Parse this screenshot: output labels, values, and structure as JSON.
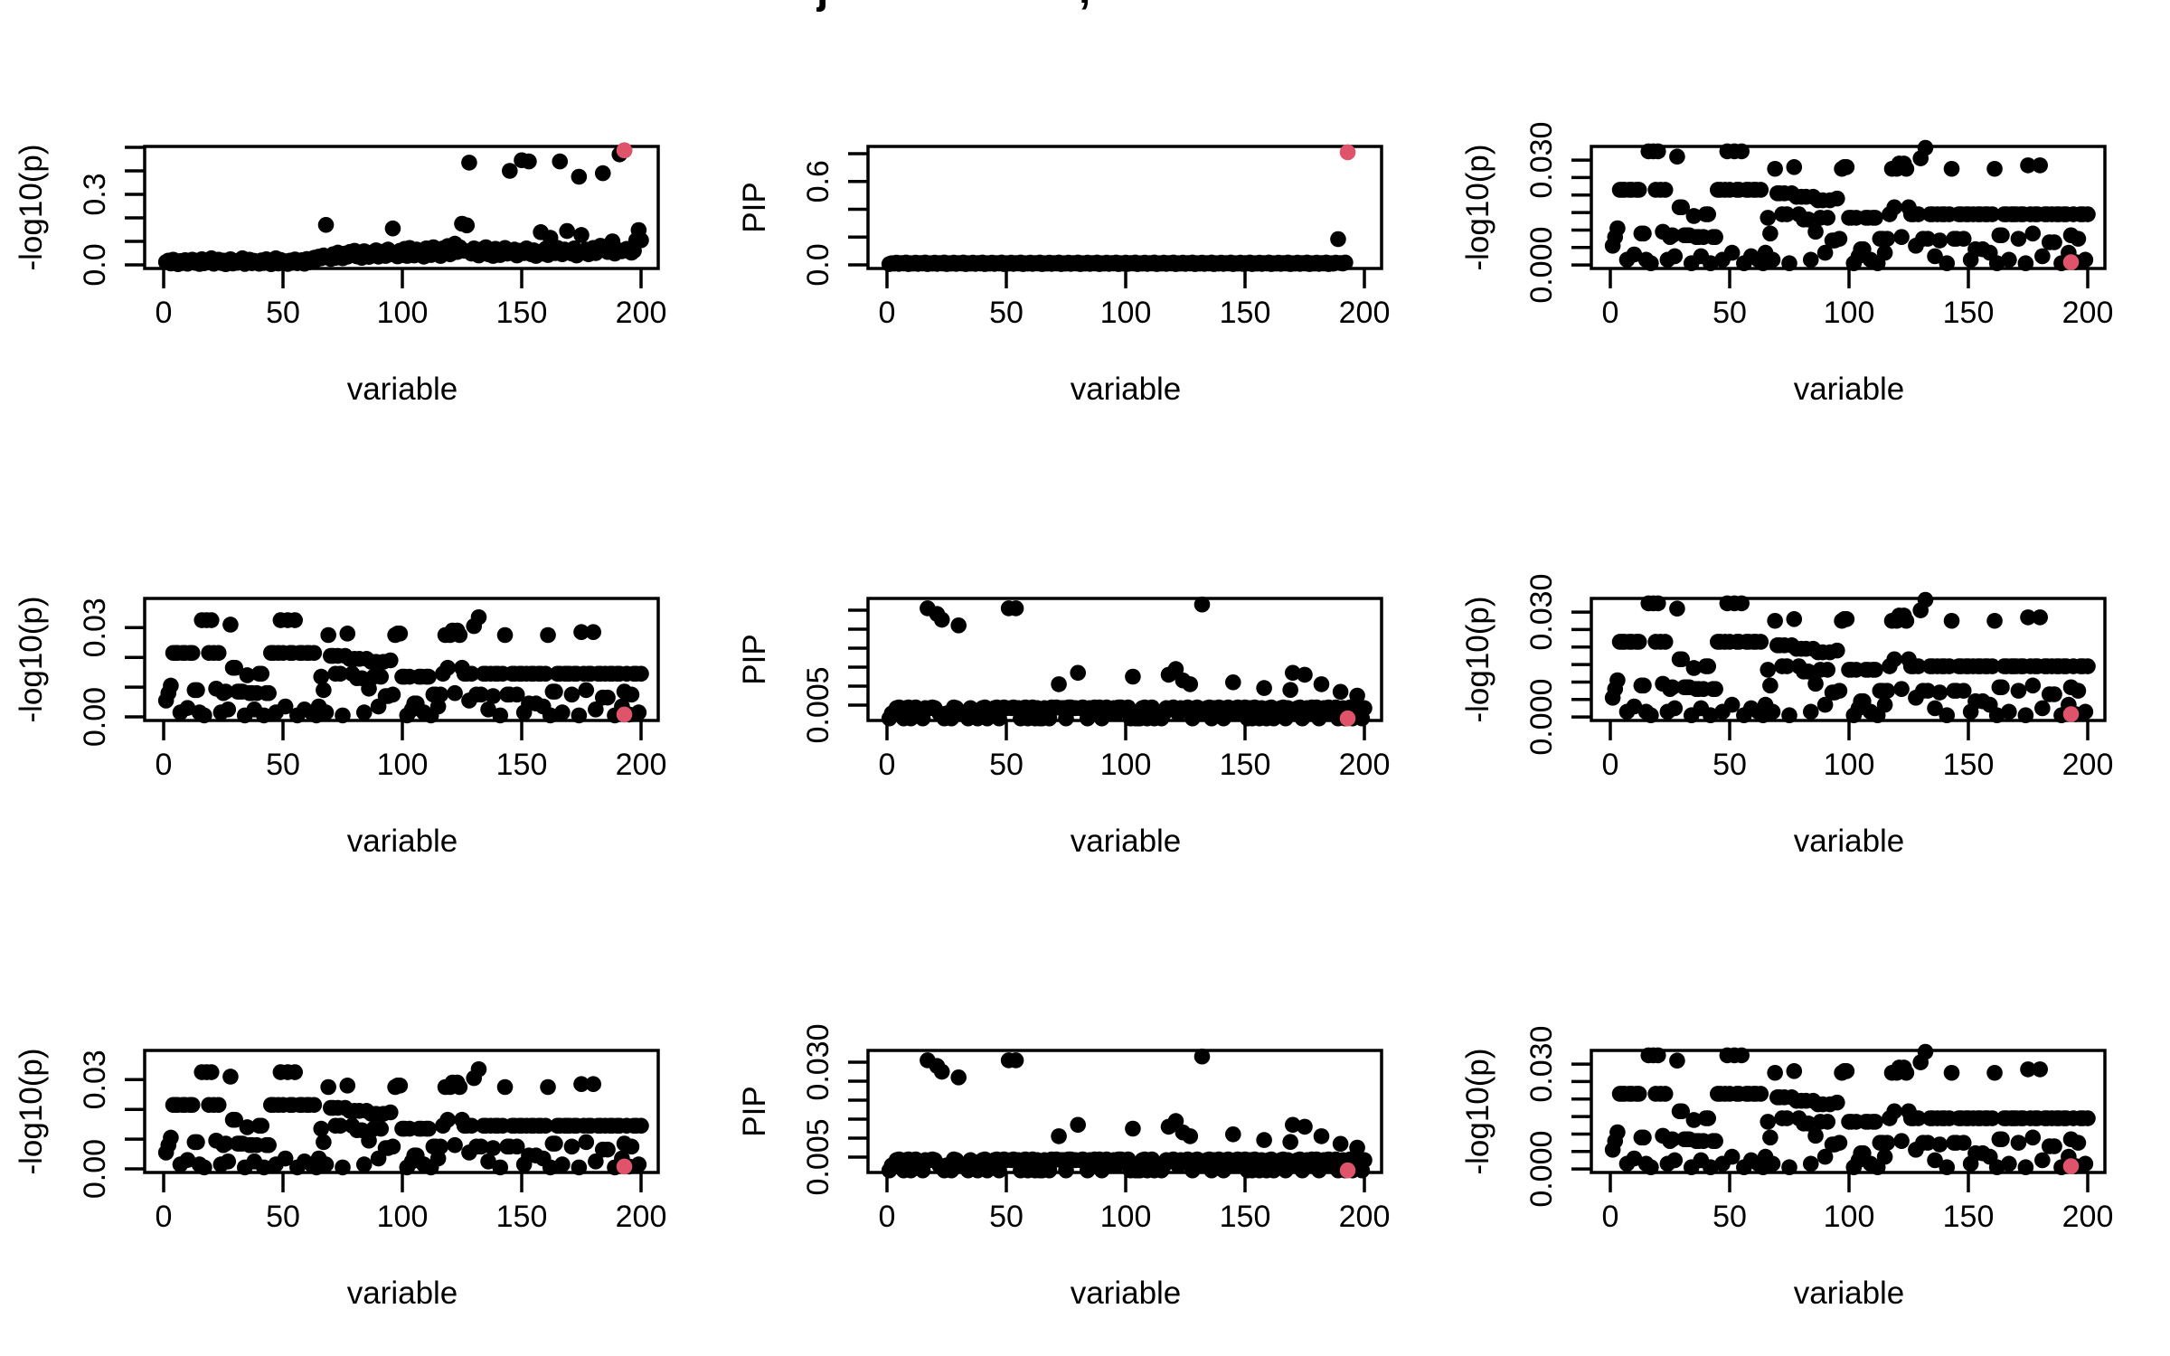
{
  "title_fragments": {
    "j_descender": "j",
    "comma": ","
  },
  "colors": {
    "point": "#000000",
    "highlight": "#DF536B",
    "background": "#FFFFFF",
    "axis": "#000000"
  },
  "x_axis": {
    "label": "variable",
    "ticks": [
      0,
      50,
      100,
      150,
      200
    ],
    "xlim": [
      -8,
      208
    ]
  },
  "chart_data": [
    {
      "id": "r1c1",
      "type": "scatter",
      "xlabel": "variable",
      "ylabel": "-log10(p)",
      "y_ticks": [
        0,
        0.1,
        0.2,
        0.3,
        0.4,
        0.5
      ],
      "y_tick_labels": [
        {
          "text": "0.0",
          "value": 0
        },
        {
          "text": "0.3",
          "value": 0.3
        }
      ],
      "ylim": [
        -0.0154,
        0.5038
      ],
      "grid": false,
      "dataset": "signal_logp",
      "highlight": {
        "x": 193,
        "y": 0.487
      }
    },
    {
      "id": "r1c2",
      "type": "scatter",
      "xlabel": "variable",
      "ylabel": "PIP",
      "y_ticks": [
        0,
        0.2,
        0.4,
        0.6,
        0.8
      ],
      "y_tick_labels": [
        {
          "text": "0.0",
          "value": 0
        },
        {
          "text": "0.6",
          "value": 0.6
        }
      ],
      "ylim": [
        -0.026,
        0.852
      ],
      "grid": false,
      "dataset": "pip_signal",
      "highlight": {
        "x": 193,
        "y": 0.81
      }
    },
    {
      "id": "r1c3",
      "type": "scatter",
      "xlabel": "variable",
      "ylabel": "-log10(p)",
      "y_ticks": [
        0,
        0.005,
        0.01,
        0.015,
        0.02,
        0.025,
        0.03
      ],
      "y_tick_labels": [
        {
          "text": "0.000",
          "value": 0
        },
        {
          "text": "0.030",
          "value": 0.03
        }
      ],
      "ylim": [
        -0.001,
        0.0339
      ],
      "grid": false,
      "dataset": "noise_logp",
      "highlight": {
        "x": 193,
        "y": 0.0008
      }
    },
    {
      "id": "r2c1",
      "type": "scatter",
      "xlabel": "variable",
      "ylabel": "-log10(p)",
      "y_ticks": [
        0,
        0.01,
        0.02,
        0.03
      ],
      "y_tick_labels": [
        {
          "text": "0.00",
          "value": 0
        },
        {
          "text": "0.03",
          "value": 0.03
        }
      ],
      "ylim": [
        -0.0012,
        0.0398
      ],
      "grid": false,
      "dataset": "noise_logp",
      "highlight": {
        "x": 193,
        "y": 0.0008
      }
    },
    {
      "id": "r2c2",
      "type": "scatter",
      "xlabel": "variable",
      "ylabel": "PIP",
      "y_ticks": [
        0.005,
        0.01,
        0.015,
        0.02,
        0.025,
        0.03
      ],
      "y_tick_labels": [
        {
          "text": "0.005",
          "value": 0.005
        }
      ],
      "ylim": [
        0.00095,
        0.0331
      ],
      "grid": false,
      "dataset": "pip_null",
      "highlight": {
        "x": 193,
        "y": 0.0015
      }
    },
    {
      "id": "r2c3",
      "type": "scatter",
      "xlabel": "variable",
      "ylabel": "-log10(p)",
      "y_ticks": [
        0,
        0.005,
        0.01,
        0.015,
        0.02,
        0.025,
        0.03
      ],
      "y_tick_labels": [
        {
          "text": "0.000",
          "value": 0
        },
        {
          "text": "0.030",
          "value": 0.03
        }
      ],
      "ylim": [
        -0.001,
        0.0339
      ],
      "grid": false,
      "dataset": "noise_logp",
      "highlight": {
        "x": 193,
        "y": 0.0008
      }
    },
    {
      "id": "r3c1",
      "type": "scatter",
      "xlabel": "variable",
      "ylabel": "-log10(p)",
      "y_ticks": [
        0,
        0.01,
        0.02,
        0.03
      ],
      "y_tick_labels": [
        {
          "text": "0.00",
          "value": 0
        },
        {
          "text": "0.03",
          "value": 0.03
        }
      ],
      "ylim": [
        -0.0012,
        0.0398
      ],
      "grid": false,
      "dataset": "noise_logp",
      "highlight": {
        "x": 193,
        "y": 0.0008
      }
    },
    {
      "id": "r3c2",
      "type": "scatter",
      "xlabel": "variable",
      "ylabel": "PIP",
      "y_ticks": [
        0.005,
        0.01,
        0.015,
        0.02,
        0.025,
        0.03
      ],
      "y_tick_labels": [
        {
          "text": "0.030",
          "value": 0.03
        },
        {
          "text": "0.005",
          "value": 0.005
        }
      ],
      "ylim": [
        0.00095,
        0.0331
      ],
      "grid": false,
      "dataset": "pip_null",
      "highlight": {
        "x": 193,
        "y": 0.0015
      }
    },
    {
      "id": "r3c3",
      "type": "scatter",
      "xlabel": "variable",
      "ylabel": "-log10(p)",
      "y_ticks": [
        0,
        0.005,
        0.01,
        0.015,
        0.02,
        0.025,
        0.03
      ],
      "y_tick_labels": [
        {
          "text": "0.000",
          "value": 0
        },
        {
          "text": "0.030",
          "value": 0.03
        }
      ],
      "ylim": [
        -0.001,
        0.0339
      ],
      "grid": false,
      "dataset": "noise_logp",
      "highlight": {
        "x": 193,
        "y": 0.0008
      }
    }
  ],
  "datasets": {
    "signal_logp": [
      0.012,
      0.018,
      0.006,
      0.022,
      0.012,
      0.003,
      0.016,
      0.008,
      0.02,
      0.005,
      0.014,
      0.022,
      0.009,
      0.017,
      0.004,
      0.024,
      0.007,
      0.019,
      0.011,
      0.028,
      0.005,
      0.015,
      0.022,
      0.008,
      0.018,
      0.003,
      0.012,
      0.024,
      0.006,
      0.016,
      0.009,
      0.02,
      0.028,
      0.004,
      0.014,
      0.022,
      0.007,
      0.017,
      0.011,
      0.005,
      0.019,
      0.008,
      0.024,
      0.013,
      0.003,
      0.016,
      0.028,
      0.006,
      0.021,
      0.01,
      0.015,
      0.004,
      0.018,
      0.009,
      0.023,
      0.007,
      0.013,
      0.02,
      0.005,
      0.025,
      0.011,
      0.016,
      0.03,
      0.022,
      0.035,
      0.028,
      0.04,
      0.17,
      0.033,
      0.025,
      0.045,
      0.03,
      0.052,
      0.038,
      0.028,
      0.048,
      0.035,
      0.055,
      0.042,
      0.06,
      0.036,
      0.05,
      0.03,
      0.058,
      0.044,
      0.034,
      0.052,
      0.04,
      0.062,
      0.035,
      0.048,
      0.056,
      0.038,
      0.065,
      0.045,
      0.155,
      0.05,
      0.036,
      0.06,
      0.042,
      0.068,
      0.038,
      0.072,
      0.052,
      0.04,
      0.065,
      0.048,
      0.058,
      0.035,
      0.07,
      0.055,
      0.042,
      0.075,
      0.048,
      0.062,
      0.038,
      0.07,
      0.052,
      0.08,
      0.045,
      0.065,
      0.09,
      0.055,
      0.075,
      0.175,
      0.06,
      0.168,
      0.435,
      0.048,
      0.07,
      0.055,
      0.04,
      0.065,
      0.05,
      0.075,
      0.045,
      0.06,
      0.038,
      0.068,
      0.052,
      0.042,
      0.058,
      0.072,
      0.048,
      0.4,
      0.055,
      0.065,
      0.04,
      0.06,
      0.445,
      0.05,
      0.07,
      0.44,
      0.045,
      0.062,
      0.038,
      0.055,
      0.139,
      0.048,
      0.068,
      0.042,
      0.115,
      0.058,
      0.05,
      0.072,
      0.44,
      0.045,
      0.065,
      0.144,
      0.055,
      0.048,
      0.07,
      0.04,
      0.375,
      0.127,
      0.052,
      0.065,
      0.045,
      0.058,
      0.072,
      0.05,
      0.068,
      0.081,
      0.39,
      0.062,
      0.055,
      0.07,
      0.1,
      0.048,
      0.065,
      0.47,
      0.058,
      0.487,
      0.068,
      0.06,
      0.052,
      0.06,
      0.105,
      0.148,
      0.105
    ],
    "pip_signal": [
      0.006,
      0.012,
      0.009,
      0.016,
      0.007,
      0.013,
      0.01,
      0.017,
      0.006,
      0.012,
      0.009,
      0.016,
      0.007,
      0.013,
      0.01,
      0.017,
      0.006,
      0.012,
      0.009,
      0.016,
      0.007,
      0.013,
      0.01,
      0.017,
      0.006,
      0.012,
      0.009,
      0.016,
      0.007,
      0.013,
      0.01,
      0.017,
      0.006,
      0.012,
      0.009,
      0.016,
      0.007,
      0.013,
      0.01,
      0.017,
      0.006,
      0.012,
      0.009,
      0.016,
      0.007,
      0.013,
      0.01,
      0.017,
      0.006,
      0.012,
      0.009,
      0.016,
      0.007,
      0.013,
      0.01,
      0.017,
      0.006,
      0.012,
      0.009,
      0.016,
      0.007,
      0.013,
      0.01,
      0.017,
      0.006,
      0.012,
      0.009,
      0.016,
      0.007,
      0.013,
      0.01,
      0.017,
      0.006,
      0.012,
      0.009,
      0.016,
      0.007,
      0.013,
      0.01,
      0.017,
      0.006,
      0.012,
      0.009,
      0.016,
      0.007,
      0.013,
      0.01,
      0.017,
      0.006,
      0.012,
      0.009,
      0.016,
      0.007,
      0.013,
      0.01,
      0.017,
      0.006,
      0.012,
      0.009,
      0.016,
      0.007,
      0.013,
      0.01,
      0.017,
      0.006,
      0.012,
      0.009,
      0.016,
      0.007,
      0.013,
      0.01,
      0.017,
      0.006,
      0.012,
      0.009,
      0.016,
      0.007,
      0.013,
      0.01,
      0.017,
      0.006,
      0.012,
      0.009,
      0.016,
      0.007,
      0.013,
      0.01,
      0.017,
      0.006,
      0.012,
      0.009,
      0.016,
      0.007,
      0.013,
      0.01,
      0.017,
      0.006,
      0.012,
      0.009,
      0.016,
      0.007,
      0.013,
      0.01,
      0.017,
      0.006,
      0.012,
      0.009,
      0.016,
      0.007,
      0.013,
      0.01,
      0.017,
      0.006,
      0.012,
      0.009,
      0.016,
      0.007,
      0.013,
      0.01,
      0.017,
      0.006,
      0.012,
      0.009,
      0.016,
      0.007,
      0.013,
      0.01,
      0.017,
      0.006,
      0.012,
      0.009,
      0.016,
      0.007,
      0.013,
      0.01,
      0.017,
      0.006,
      0.012,
      0.009,
      0.016,
      0.007,
      0.013,
      0.01,
      0.017,
      0.006,
      0.012,
      0.009,
      0.016,
      0.185,
      0.013,
      0.01,
      0.017
    ],
    "noise_logp": [
      0.0055,
      0.008,
      0.0105,
      0.0215,
      0.0215,
      0.0215,
      0.0015,
      0.0215,
      0.0215,
      0.003,
      0.0215,
      0.0215,
      0.009,
      0.009,
      0.0015,
      0.0325,
      0.0005,
      0.0325,
      0.0215,
      0.0325,
      0.0215,
      0.0095,
      0.0215,
      0.0015,
      0.008,
      0.0085,
      0.0025,
      0.031,
      0.0165,
      0.0165,
      0.0085,
      0.0085,
      0.0085,
      0.0005,
      0.014,
      0.008,
      0.008,
      0.0025,
      0.008,
      0.0145,
      0.0145,
      0.0005,
      0.008,
      0.008,
      0.0215,
      0.0215,
      0.0015,
      0.0215,
      0.0325,
      0.0215,
      0.0035,
      0.0325,
      0.0215,
      0.0215,
      0.0325,
      0.0005,
      0.0215,
      0.0215,
      0.0025,
      0.0215,
      0.0215,
      0.0015,
      0.0215,
      0.0005,
      0.0035,
      0.0135,
      0.009,
      0.0015,
      0.0275,
      0.0205,
      0.0205,
      0.0145,
      0.0205,
      0.0145,
      0.0005,
      0.0205,
      0.028,
      0.0195,
      0.0145,
      0.0195,
      0.013,
      0.0195,
      0.013,
      0.0015,
      0.0195,
      0.0095,
      0.0185,
      0.0135,
      0.0185,
      0.0035,
      0.0135,
      0.0185,
      0.007,
      0.007,
      0.019,
      0.0075,
      0.0275,
      0.028,
      0.028,
      0.0135,
      0.0135,
      0.0005,
      0.0135,
      0.0025,
      0.0045,
      0.0045,
      0.0135,
      0.0135,
      0.0015,
      0.0135,
      0.0135,
      0.0005,
      0.0075,
      0.0075,
      0.0035,
      0.0075,
      0.0145,
      0.0275,
      0.0165,
      0.0275,
      0.029,
      0.008,
      0.029,
      0.0275,
      0.0165,
      0.0145,
      0.0145,
      0.0055,
      0.0145,
      0.0305,
      0.0075,
      0.0335,
      0.0075,
      0.0145,
      0.0145,
      0.0025,
      0.0145,
      0.007,
      0.0145,
      0.0145,
      0.0005,
      0.0145,
      0.0275,
      0.0075,
      0.0075,
      0.0145,
      0.0145,
      0.0075,
      0.0145,
      0.0145,
      0.0015,
      0.0145,
      0.0045,
      0.0145,
      0.0145,
      0.0045,
      0.0145,
      0.0145,
      0.0035,
      0.0145,
      0.0275,
      0.0005,
      0.0085,
      0.0085,
      0.0145,
      0.0145,
      0.0015,
      0.0145,
      0.0145,
      0.0145,
      0.0075,
      0.0145,
      0.0145,
      0.0005,
      0.0285,
      0.0145,
      0.009,
      0.0145,
      0.0145,
      0.0285,
      0.0025,
      0.0145,
      0.0145,
      0.0065,
      0.0145,
      0.0065,
      0.0145,
      0.0145,
      0.0005,
      0.0145,
      0.0145,
      0.0035,
      0.0085,
      0.0145,
      0.0008,
      0.0075,
      0.0145,
      0.0145,
      0.0015,
      0.0145
    ],
    "pip_null": [
      0.0015,
      0.0028,
      0.0028,
      0.0042,
      0.0044,
      0.0042,
      0.0015,
      0.0042,
      0.0044,
      0.0015,
      0.0042,
      0.0044,
      0.0028,
      0.0028,
      0.0015,
      0.0042,
      0.0305,
      0.0042,
      0.0044,
      0.0042,
      0.029,
      0.0028,
      0.0275,
      0.0015,
      0.0028,
      0.0028,
      0.0015,
      0.0044,
      0.0042,
      0.026,
      0.0028,
      0.0028,
      0.0028,
      0.0015,
      0.0042,
      0.0028,
      0.0028,
      0.0015,
      0.0028,
      0.0042,
      0.0044,
      0.0015,
      0.0028,
      0.0028,
      0.0042,
      0.0044,
      0.0015,
      0.0042,
      0.0044,
      0.0042,
      0.0305,
      0.0042,
      0.0044,
      0.0305,
      0.0042,
      0.0015,
      0.0042,
      0.0044,
      0.0015,
      0.0042,
      0.0044,
      0.0015,
      0.0042,
      0.0015,
      0.0015,
      0.0042,
      0.0028,
      0.0015,
      0.0044,
      0.0042,
      0.0044,
      0.0105,
      0.0042,
      0.0042,
      0.0015,
      0.0044,
      0.0044,
      0.0042,
      0.0042,
      0.0135,
      0.0042,
      0.0044,
      0.0042,
      0.0015,
      0.0042,
      0.0028,
      0.0044,
      0.0042,
      0.0044,
      0.0015,
      0.0042,
      0.0044,
      0.0028,
      0.0028,
      0.0042,
      0.0028,
      0.0044,
      0.0044,
      0.0042,
      0.0042,
      0.0044,
      0.0015,
      0.0125,
      0.0015,
      0.0015,
      0.0015,
      0.0042,
      0.0044,
      0.0015,
      0.0042,
      0.0044,
      0.0015,
      0.0028,
      0.0028,
      0.0015,
      0.0028,
      0.0042,
      0.013,
      0.0042,
      0.0044,
      0.0145,
      0.0028,
      0.0042,
      0.0115,
      0.0042,
      0.0044,
      0.0105,
      0.0015,
      0.0042,
      0.0044,
      0.0028,
      0.0315,
      0.0028,
      0.0042,
      0.0044,
      0.0015,
      0.0042,
      0.0028,
      0.0044,
      0.0042,
      0.0015,
      0.0042,
      0.0044,
      0.0028,
      0.011,
      0.0042,
      0.0044,
      0.0028,
      0.0042,
      0.0044,
      0.0015,
      0.0042,
      0.0015,
      0.0044,
      0.0042,
      0.0015,
      0.0042,
      0.0095,
      0.0015,
      0.0042,
      0.0044,
      0.0015,
      0.0028,
      0.0028,
      0.0042,
      0.0044,
      0.0015,
      0.0042,
      0.009,
      0.0135,
      0.0028,
      0.0042,
      0.0044,
      0.0015,
      0.013,
      0.0042,
      0.0028,
      0.0044,
      0.0042,
      0.0044,
      0.0015,
      0.0105,
      0.0042,
      0.0028,
      0.0044,
      0.0028,
      0.0042,
      0.0044,
      0.0015,
      0.0085,
      0.0042,
      0.0015,
      0.0028,
      0.0044,
      0.0015,
      0.0028,
      0.0075,
      0.0042,
      0.0015,
      0.0042
    ]
  }
}
